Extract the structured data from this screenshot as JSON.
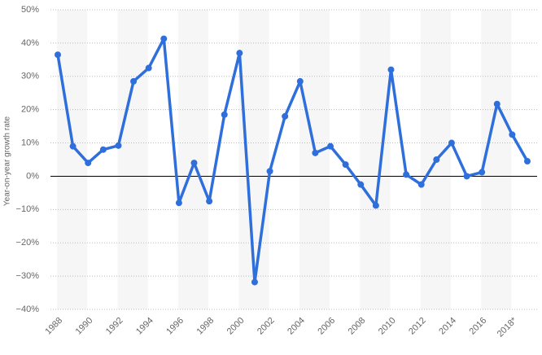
{
  "chart_data": {
    "type": "line",
    "y_label": "Year-on-year growth rate",
    "categories": [
      "1988",
      null,
      "1990",
      null,
      "1992",
      null,
      "1994",
      null,
      "1996",
      null,
      "1998",
      null,
      "2000",
      null,
      "2002",
      null,
      "2004",
      null,
      "2006",
      null,
      "2008",
      null,
      "2010",
      null,
      "2012",
      null,
      "2014",
      null,
      "2016",
      null,
      "2018*",
      null
    ],
    "series": [
      {
        "name": "Growth rate",
        "color": "#2f6fdc",
        "values": [
          36.5,
          9,
          4,
          8,
          9.2,
          28.5,
          32.5,
          41.3,
          -8,
          4,
          -7.5,
          18.5,
          37,
          -31.8,
          1.5,
          18,
          28.5,
          7,
          9,
          3.5,
          -2.5,
          -8.8,
          32,
          0.5,
          -2.5,
          5,
          10,
          0,
          1.2,
          21.7,
          12.5,
          4.5
        ]
      }
    ],
    "ylim": [
      -40,
      50
    ],
    "yticks": [
      {
        "value": -40,
        "label": "−40%"
      },
      {
        "value": -30,
        "label": "−30%"
      },
      {
        "value": -20,
        "label": "−20%"
      },
      {
        "value": -10,
        "label": "−10%"
      },
      {
        "value": 0,
        "label": "0%"
      },
      {
        "value": 10,
        "label": "10%"
      },
      {
        "value": 20,
        "label": "20%"
      },
      {
        "value": 30,
        "label": "30%"
      },
      {
        "value": 40,
        "label": "40%"
      },
      {
        "value": 50,
        "label": "50%"
      }
    ],
    "grid": true
  }
}
